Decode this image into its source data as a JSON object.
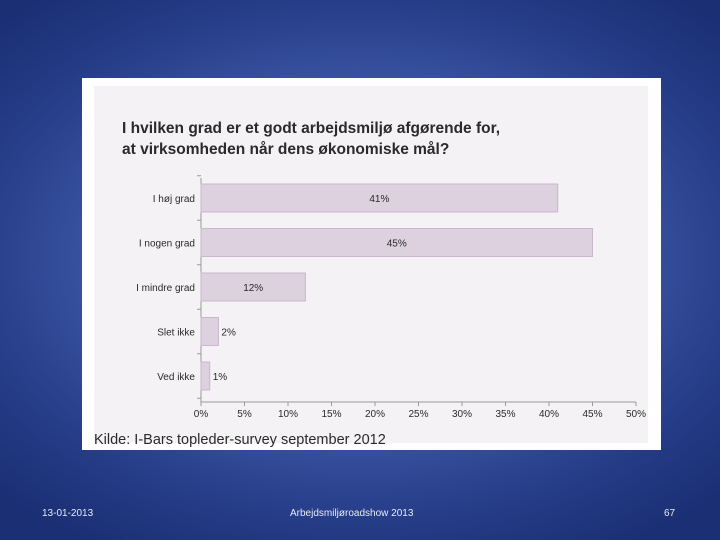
{
  "chart_data": {
    "type": "bar",
    "orientation": "horizontal",
    "title_lines": [
      "I hvilken grad er et godt arbejdsmiljø afgørende for,",
      "at virksomheden når dens økonomiske mål?"
    ],
    "categories": [
      "I høj grad",
      "I nogen grad",
      "I mindre grad",
      "Slet ikke",
      "Ved ikke"
    ],
    "values": [
      41,
      45,
      12,
      2,
      1
    ],
    "data_labels": [
      "41%",
      "45%",
      "12%",
      "2%",
      "1%"
    ],
    "x_ticks": [
      "0%",
      "5%",
      "10%",
      "15%",
      "20%",
      "25%",
      "30%",
      "35%",
      "40%",
      "45%",
      "50%"
    ],
    "xlim": [
      0,
      50
    ],
    "grid": false,
    "bar_color": "#ddd0df",
    "bar_edge_color": "#c8b8cc",
    "source": "Kilde: I-Bars topleder-survey september 2012"
  },
  "footer": {
    "date": "13-01-2013",
    "center": "Arbejdsmiljøroadshow 2013",
    "page": "67"
  }
}
